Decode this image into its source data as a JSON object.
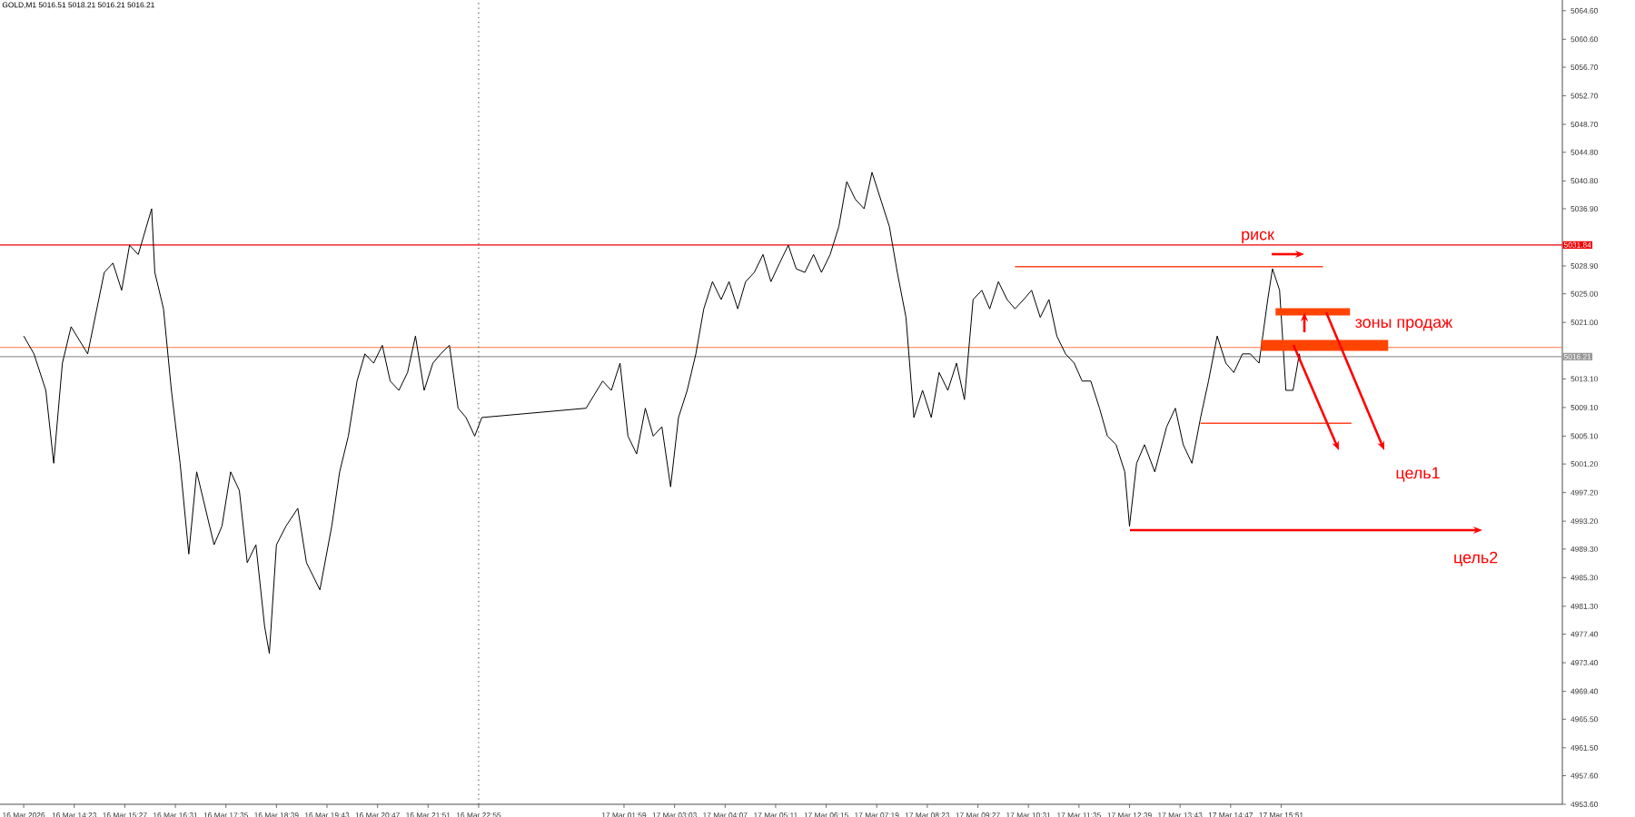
{
  "chart_data": {
    "type": "line",
    "title": "GOLD,M1  5016.51 5018.21 5016.21 5016.21",
    "xlim": [
      "2026-03-16T12:49",
      "2026-03-17T21:47"
    ],
    "ylim": [
      4953.6,
      5066.1
    ],
    "xticks": [
      {
        "value": "2026-03-16T13:19",
        "label": "16 Mar 2026"
      },
      {
        "value": "2026-03-16T14:23",
        "label": "16 Mar 14:23"
      },
      {
        "value": "2026-03-16T15:27",
        "label": "16 Mar 15:27"
      },
      {
        "value": "2026-03-16T16:31",
        "label": "16 Mar 16:31"
      },
      {
        "value": "2026-03-16T17:35",
        "label": "16 Mar 17:35"
      },
      {
        "value": "2026-03-16T18:39",
        "label": "16 Mar 18:39"
      },
      {
        "value": "2026-03-16T19:43",
        "label": "16 Mar 19:43"
      },
      {
        "value": "2026-03-16T20:47",
        "label": "16 Mar 20:47"
      },
      {
        "value": "2026-03-16T21:51",
        "label": "16 Mar 21:51"
      },
      {
        "value": "2026-03-16T22:55",
        "label": "16 Mar 22:55"
      },
      {
        "value": "2026-03-17T01:59",
        "label": "17 Mar 01:59"
      },
      {
        "value": "2026-03-17T03:03",
        "label": "17 Mar 03:03"
      },
      {
        "value": "2026-03-17T04:07",
        "label": "17 Mar 04:07"
      },
      {
        "value": "2026-03-17T05:11",
        "label": "17 Mar 05:11"
      },
      {
        "value": "2026-03-17T06:15",
        "label": "17 Mar 06:15"
      },
      {
        "value": "2026-03-17T07:19",
        "label": "17 Mar 07:19"
      },
      {
        "value": "2026-03-17T08:23",
        "label": "17 Mar 08:23"
      },
      {
        "value": "2026-03-17T09:27",
        "label": "17 Mar 09:27"
      },
      {
        "value": "2026-03-17T10:31",
        "label": "17 Mar 10:31"
      },
      {
        "value": "2026-03-17T11:35",
        "label": "17 Mar 11:35"
      },
      {
        "value": "2026-03-17T12:39",
        "label": "17 Mar 12:39"
      },
      {
        "value": "2026-03-17T13:43",
        "label": "17 Mar 13:43"
      },
      {
        "value": "2026-03-17T14:47",
        "label": "17 Mar 14:47"
      },
      {
        "value": "2026-03-17T15:51",
        "label": "17 Mar 15:51"
      }
    ],
    "yticks": [
      {
        "value": 5064.6,
        "label": "5064.60"
      },
      {
        "value": 5060.6,
        "label": "5060.60"
      },
      {
        "value": 5056.7,
        "label": "5056.70"
      },
      {
        "value": 5052.7,
        "label": "5052.70"
      },
      {
        "value": 5048.7,
        "label": "5048.70"
      },
      {
        "value": 5044.8,
        "label": "5044.80"
      },
      {
        "value": 5040.8,
        "label": "5040.80"
      },
      {
        "value": 5036.9,
        "label": "5036.90"
      },
      {
        "value": 5028.9,
        "label": "5028.90"
      },
      {
        "value": 5025.0,
        "label": "5025.00"
      },
      {
        "value": 5021.0,
        "label": "5021.00"
      },
      {
        "value": 5013.1,
        "label": "5013.10"
      },
      {
        "value": 5009.1,
        "label": "5009.10"
      },
      {
        "value": 5005.1,
        "label": "5005.10"
      },
      {
        "value": 5001.2,
        "label": "5001.20"
      },
      {
        "value": 4997.2,
        "label": "4997.20"
      },
      {
        "value": 4993.2,
        "label": "4993.20"
      },
      {
        "value": 4989.3,
        "label": "4989.30"
      },
      {
        "value": 4985.3,
        "label": "4985.30"
      },
      {
        "value": 4981.3,
        "label": "4981.30"
      },
      {
        "value": 4977.4,
        "label": "4977.40"
      },
      {
        "value": 4973.4,
        "label": "4973.40"
      },
      {
        "value": 4969.4,
        "label": "4969.40"
      },
      {
        "value": 4965.5,
        "label": "4965.50"
      },
      {
        "value": 4961.5,
        "label": "4961.50"
      },
      {
        "value": 4957.6,
        "label": "4957.60"
      },
      {
        "value": 4953.6,
        "label": "4953.60"
      }
    ],
    "grid": false,
    "series": [
      {
        "color": "#000000",
        "x": [
          "2026-03-16T13:19",
          "2026-03-16T13:32",
          "2026-03-16T13:47",
          "2026-03-16T13:57",
          "2026-03-16T14:08",
          "2026-03-16T14:19",
          "2026-03-16T14:40",
          "2026-03-16T15:01",
          "2026-03-16T15:12",
          "2026-03-16T15:23",
          "2026-03-16T15:33",
          "2026-03-16T15:44",
          "2026-03-16T16:01",
          "2026-03-16T16:05",
          "2026-03-16T16:16",
          "2026-03-16T16:26",
          "2026-03-16T16:37",
          "2026-03-16T16:48",
          "2026-03-16T16:58",
          "2026-03-16T17:09",
          "2026-03-16T17:20",
          "2026-03-16T17:30",
          "2026-03-16T17:41",
          "2026-03-16T17:52",
          "2026-03-16T18:02",
          "2026-03-16T18:13",
          "2026-03-16T18:24",
          "2026-03-16T18:30",
          "2026-03-16T18:39",
          "2026-03-16T18:51",
          "2026-03-16T19:06",
          "2026-03-16T19:17",
          "2026-03-16T19:34",
          "2026-03-16T19:49",
          "2026-03-16T19:59",
          "2026-03-16T20:10",
          "2026-03-16T20:21",
          "2026-03-16T20:31",
          "2026-03-16T20:42",
          "2026-03-16T20:53",
          "2026-03-16T21:03",
          "2026-03-16T21:14",
          "2026-03-16T21:25",
          "2026-03-16T21:35",
          "2026-03-16T21:46",
          "2026-03-16T21:57",
          "2026-03-16T22:07",
          "2026-03-16T22:18",
          "2026-03-16T22:29",
          "2026-03-16T22:39",
          "2026-03-16T22:50",
          "2026-03-16T22:59",
          "2026-03-17T01:11",
          "2026-03-17T01:32",
          "2026-03-17T01:43",
          "2026-03-17T01:54",
          "2026-03-17T02:04",
          "2026-03-17T02:15",
          "2026-03-17T02:26",
          "2026-03-17T02:36",
          "2026-03-17T02:47",
          "2026-03-17T02:58",
          "2026-03-17T03:08",
          "2026-03-17T03:19",
          "2026-03-17T03:30",
          "2026-03-17T03:40",
          "2026-03-17T03:51",
          "2026-03-17T04:02",
          "2026-03-17T04:12",
          "2026-03-17T04:23",
          "2026-03-17T04:33",
          "2026-03-17T04:44",
          "2026-03-17T04:55",
          "2026-03-17T05:05",
          "2026-03-17T05:16",
          "2026-03-17T05:27",
          "2026-03-17T05:37",
          "2026-03-17T05:48",
          "2026-03-17T05:59",
          "2026-03-17T06:09",
          "2026-03-17T06:20",
          "2026-03-17T06:31",
          "2026-03-17T06:41",
          "2026-03-17T06:52",
          "2026-03-17T07:03",
          "2026-03-17T07:13",
          "2026-03-17T07:24",
          "2026-03-17T07:35",
          "2026-03-17T07:45",
          "2026-03-17T07:56",
          "2026-03-17T08:06",
          "2026-03-17T08:17",
          "2026-03-17T08:28",
          "2026-03-17T08:38",
          "2026-03-17T08:49",
          "2026-03-17T09:00",
          "2026-03-17T09:10",
          "2026-03-17T09:21",
          "2026-03-17T09:32",
          "2026-03-17T09:42",
          "2026-03-17T09:53",
          "2026-03-17T10:04",
          "2026-03-17T10:14",
          "2026-03-17T10:25",
          "2026-03-17T10:35",
          "2026-03-17T10:46",
          "2026-03-17T10:57",
          "2026-03-17T11:07",
          "2026-03-17T11:18",
          "2026-03-17T11:29",
          "2026-03-17T11:39",
          "2026-03-17T11:50",
          "2026-03-17T12:01",
          "2026-03-17T12:11",
          "2026-03-17T12:22",
          "2026-03-17T12:33",
          "2026-03-17T12:39",
          "2026-03-17T12:48",
          "2026-03-17T12:58",
          "2026-03-17T13:11",
          "2026-03-17T13:26",
          "2026-03-17T13:37",
          "2026-03-17T13:47",
          "2026-03-17T13:58",
          "2026-03-17T14:09",
          "2026-03-17T14:19",
          "2026-03-17T14:30",
          "2026-03-17T14:41",
          "2026-03-17T14:51",
          "2026-03-17T15:02",
          "2026-03-17T15:12",
          "2026-03-17T15:23",
          "2026-03-17T15:34",
          "2026-03-17T15:40",
          "2026-03-17T15:49",
          "2026-03-17T15:57",
          "2026-03-17T16:06",
          "2026-03-17T16:14",
          "2026-03-17T16:16"
        ],
        "values": [
          5019.1,
          5016.6,
          5011.5,
          5001.3,
          5015.3,
          5020.4,
          5016.6,
          5028.0,
          5029.3,
          5025.5,
          5031.8,
          5030.5,
          5036.9,
          5028.0,
          5022.9,
          5011.5,
          5001.3,
          4988.6,
          5000.1,
          4995.0,
          4989.9,
          4992.5,
          5000.1,
          4997.5,
          4987.4,
          4989.9,
          4978.5,
          4974.7,
          4989.9,
          4992.5,
          4995.0,
          4987.4,
          4983.6,
          4992.5,
          5000.1,
          5005.1,
          5012.8,
          5016.6,
          5015.3,
          5017.8,
          5012.8,
          5011.5,
          5014.0,
          5019.1,
          5011.5,
          5015.3,
          5016.6,
          5017.8,
          5009.0,
          5007.7,
          5005.1,
          5007.7,
          5009.0,
          5012.8,
          5011.5,
          5015.3,
          5005.1,
          5002.6,
          5009.0,
          5005.1,
          5006.4,
          4998.0,
          5007.7,
          5011.5,
          5016.6,
          5022.9,
          5026.7,
          5024.2,
          5026.7,
          5022.9,
          5026.7,
          5028.0,
          5030.5,
          5026.7,
          5029.3,
          5031.8,
          5028.5,
          5028.0,
          5030.5,
          5028.0,
          5030.5,
          5034.4,
          5040.7,
          5038.2,
          5036.9,
          5042.0,
          5038.2,
          5034.4,
          5028.0,
          5021.7,
          5007.7,
          5011.5,
          5007.7,
          5014.0,
          5011.5,
          5015.3,
          5010.2,
          5024.2,
          5025.5,
          5022.9,
          5026.7,
          5024.2,
          5022.9,
          5024.2,
          5025.5,
          5021.7,
          5024.2,
          5019.1,
          5016.6,
          5015.3,
          5012.8,
          5012.8,
          5009.0,
          5005.1,
          5003.9,
          5000.1,
          4992.5,
          5001.3,
          5003.9,
          5000.1,
          5006.4,
          5009.0,
          5003.9,
          5001.3,
          5007.7,
          5012.8,
          5019.1,
          5015.3,
          5014.0,
          5016.6,
          5016.6,
          5015.3,
          5024.2,
          5028.5,
          5025.5,
          5011.5,
          5011.5,
          5016.6,
          5015.3
        ]
      },
      {
        "color": "#ff4422",
        "x": [
          "2026-03-17T10:14",
          "2026-03-17T16:44"
        ],
        "values": [
          5028.8,
          5028.8
        ]
      },
      {
        "color": "#ff4422",
        "x": [
          "2026-03-17T14:09",
          "2026-03-17T17:20"
        ],
        "values": [
          5006.9,
          5006.9
        ]
      }
    ],
    "ref_lines": [
      {
        "axis": "y",
        "value": 5031.84,
        "label": "5031.84",
        "color": "#ee0000",
        "line_style": "solid"
      },
      {
        "axis": "y",
        "value": 5017.5,
        "color": "#ff7744",
        "line_style": "solid"
      },
      {
        "axis": "y",
        "value": 5016.21,
        "label": "5016.21",
        "color": "#999999",
        "line_style": "solid"
      },
      {
        "axis": "x",
        "value": "2026-03-16T22:55",
        "color": "#555555",
        "line_style": "dotted"
      }
    ],
    "annotations": [
      "риск",
      {
        "text": "зоны продаж",
        "x": "2026-03-17T16:46",
        "y": 5017.8
      },
      "цель1",
      "цель2"
    ]
  }
}
